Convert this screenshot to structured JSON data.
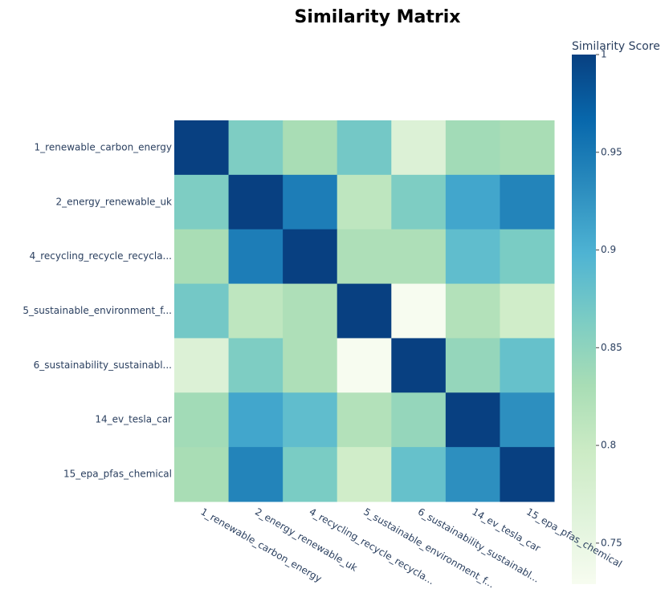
{
  "chart_data": {
    "type": "heatmap",
    "title": "Similarity Matrix",
    "colorbar_title": "Similarity Score",
    "x": [
      "1_renewable_carbon_energy",
      "2_energy_renewable_uk",
      "4_recycling_recycle_recycla...",
      "5_sustainable_environment_f...",
      "6_sustainability_sustainabl...",
      "14_ev_tesla_car",
      "15_epa_pfas_chemical"
    ],
    "y": [
      "1_renewable_carbon_energy",
      "2_energy_renewable_uk",
      "4_recycling_recycle_recycla...",
      "5_sustainable_environment_f...",
      "6_sustainability_sustainabl...",
      "14_ev_tesla_car",
      "15_epa_pfas_chemical"
    ],
    "z": [
      [
        1,
        0.862,
        0.83,
        0.87,
        0.77,
        0.835,
        0.83
      ],
      [
        0.862,
        1,
        0.946,
        0.81,
        0.862,
        0.91,
        0.94
      ],
      [
        0.83,
        0.946,
        1,
        0.825,
        0.825,
        0.885,
        0.865
      ],
      [
        0.87,
        0.81,
        0.825,
        1,
        0.729,
        0.82,
        0.79
      ],
      [
        0.77,
        0.862,
        0.825,
        0.729,
        1,
        0.845,
        0.88
      ],
      [
        0.835,
        0.91,
        0.885,
        0.82,
        0.845,
        1,
        0.93
      ],
      [
        0.83,
        0.94,
        0.865,
        0.79,
        0.88,
        0.93,
        1
      ]
    ],
    "zlim": [
      0.729,
      1
    ],
    "zticks": [
      0.75,
      0.8,
      0.85,
      0.9,
      0.95,
      1
    ],
    "colorscale": [
      [
        0,
        "rgb(247,252,240)"
      ],
      [
        0.125,
        "rgb(224,243,219)"
      ],
      [
        0.25,
        "rgb(204,235,197)"
      ],
      [
        0.375,
        "rgb(168,221,181)"
      ],
      [
        0.5,
        "rgb(123,204,196)"
      ],
      [
        0.625,
        "rgb(78,179,211)"
      ],
      [
        0.75,
        "rgb(43,140,190)"
      ],
      [
        0.875,
        "rgb(8,104,172)"
      ],
      [
        1,
        "rgb(8,64,129)"
      ]
    ]
  }
}
